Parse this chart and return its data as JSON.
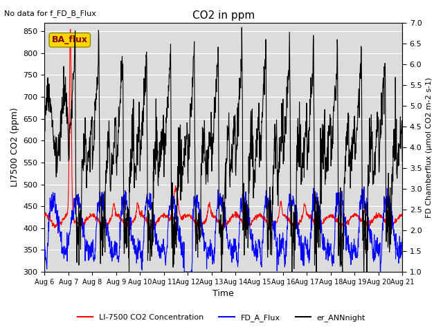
{
  "title": "CO2 in ppm",
  "top_left_text": "No data for f_FD_B_Flux",
  "ba_flux_label": "BA_flux",
  "ylabel_left": "LI7500 CO2 (ppm)",
  "ylabel_right": "FD Chamberflux (μmol CO2 m-2 s-1)",
  "xlabel": "Time",
  "ylim_left": [
    300,
    870
  ],
  "ylim_right": [
    1.0,
    7.0
  ],
  "yticks_left": [
    300,
    350,
    400,
    450,
    500,
    550,
    600,
    650,
    700,
    750,
    800,
    850
  ],
  "yticks_right": [
    1.0,
    1.5,
    2.0,
    2.5,
    3.0,
    3.5,
    4.0,
    4.5,
    5.0,
    5.5,
    6.0,
    6.5,
    7.0
  ],
  "xtick_labels": [
    "Aug 6",
    "Aug 7",
    "Aug 8",
    "Aug 9",
    "Aug 10",
    "Aug 11",
    "Aug 12",
    "Aug 13",
    "Aug 14",
    "Aug 15",
    "Aug 16",
    "Aug 17",
    "Aug 18",
    "Aug 19",
    "Aug 20",
    "Aug 21"
  ],
  "n_days": 15,
  "color_red": "#FF0000",
  "color_blue": "#0000FF",
  "color_black": "#000000",
  "background_color": "#DCDCDC",
  "legend_entries": [
    "LI-7500 CO2 Concentration",
    "FD_A_Flux",
    "er_ANNnight"
  ],
  "ba_flux_box_color": "#FFD700",
  "ba_flux_text_color": "#8B0000",
  "lw": 0.8
}
